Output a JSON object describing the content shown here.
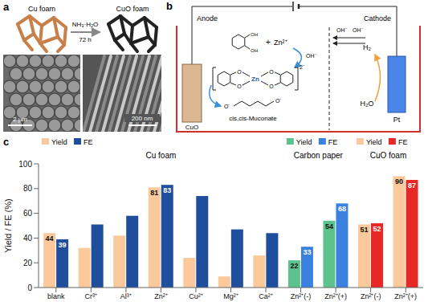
{
  "panel_a": {
    "label": "a",
    "from": "Cu foam",
    "to": "CuO foam",
    "reagent": "NH₃·H₂O",
    "time": "72 h",
    "scale_bars": [
      "2 μm",
      "200 nm"
    ]
  },
  "panel_b": {
    "label": "b",
    "anode": "Anode",
    "cathode": "Cathode",
    "anode_material": "CuO",
    "cathode_material": "Pt",
    "ion": "Zn²⁺",
    "hydroxide": "OH⁻",
    "plus": "+",
    "charge": "2⁻",
    "product": "cis,cis-Muconate",
    "gas": "H₂",
    "water": "H₂O",
    "atoms": {
      "oxygen": "O",
      "carboxylate": "O⁻",
      "hydroxyl": "OH",
      "metal": "Zn"
    }
  },
  "chart_data": {
    "type": "bar",
    "label": "c",
    "ylabel": "Yield / FE (%)",
    "categories": [
      "blank",
      "Cr³⁺",
      "Al³⁺",
      "Zn²⁺",
      "Cu²⁺",
      "Mg²⁺",
      "Ca²⁺",
      "Zn²⁺(-)",
      "Zn²⁺(+)",
      "Zn²⁺(-)",
      "Zn²⁺(+)"
    ],
    "groups": [
      "Cu foam",
      "Cu foam",
      "Cu foam",
      "Cu foam",
      "Cu foam",
      "Cu foam",
      "Cu foam",
      "Carbon paper",
      "Carbon paper",
      "CuO foam",
      "CuO foam"
    ],
    "series": [
      {
        "name": "Yield",
        "values": [
          44,
          32,
          42,
          81,
          24,
          9,
          26,
          22,
          54,
          51,
          90
        ],
        "value_labels": [
          "44",
          null,
          null,
          "81",
          null,
          null,
          null,
          "22",
          "54",
          "51",
          "90"
        ],
        "colors": [
          "#fbc99c",
          "#fbc99c",
          "#fbc99c",
          "#fbc99c",
          "#fbc99c",
          "#fbc99c",
          "#fbc99c",
          "#5cc38e",
          "#5cc38e",
          "#fbc99c",
          "#fbc99c"
        ]
      },
      {
        "name": "FE",
        "values": [
          39,
          51,
          58,
          83,
          74,
          47,
          44,
          33,
          68,
          52,
          87
        ],
        "value_labels": [
          "39",
          null,
          null,
          "83",
          null,
          null,
          null,
          "33",
          "68",
          "52",
          "87"
        ],
        "colors": [
          "#1f4e9c",
          "#1f4e9c",
          "#1f4e9c",
          "#1f4e9c",
          "#1f4e9c",
          "#1f4e9c",
          "#1f4e9c",
          "#3b82e0",
          "#3b82e0",
          "#e82727",
          "#e82727"
        ]
      }
    ],
    "ylim": [
      0,
      100
    ],
    "yticks": [
      0,
      20,
      40,
      60,
      80,
      100
    ],
    "grid": false,
    "data_labels": true
  }
}
